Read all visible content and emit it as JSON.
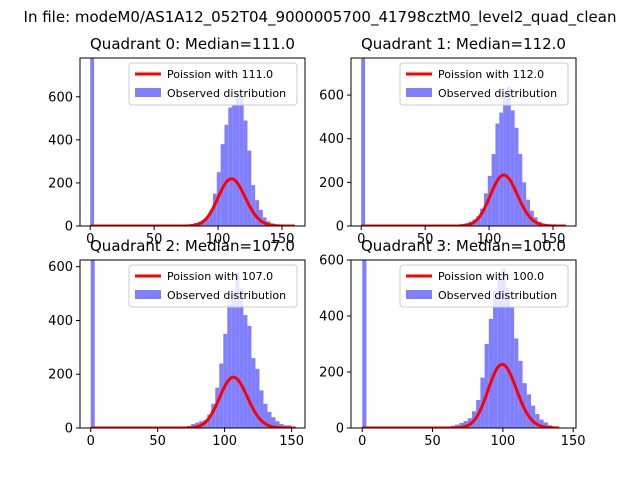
{
  "suptitle": "In file: modeM0/AS1A12_052T04_9000005700_41798cztM0_level2_quad_clean",
  "colors": {
    "hist": "#8080ff",
    "fit": "#ff0000",
    "axis": "#000000"
  },
  "chart_data": [
    {
      "type": "bar",
      "title": "Quadrant 0: Median=111.0",
      "xlim": [
        -8,
        168
      ],
      "ylim": [
        0,
        780
      ],
      "xticks": [
        0,
        50,
        100,
        150
      ],
      "yticks": [
        0,
        200,
        400,
        600
      ],
      "legend": {
        "placement": "top-right",
        "entries": [
          "Poission with 111.0",
          "Observed distribution"
        ]
      },
      "series": [
        {
          "name": "Observed distribution",
          "kind": "histogram",
          "bins": [
            {
              "x0": 0,
              "x1": 3,
              "y": 780
            },
            {
              "x0": 3,
              "x1": 66,
              "y": 0
            },
            {
              "x0": 66,
              "x1": 69,
              "y": 2
            },
            {
              "x0": 69,
              "x1": 72,
              "y": 3
            },
            {
              "x0": 72,
              "x1": 75,
              "y": 5
            },
            {
              "x0": 75,
              "x1": 78,
              "y": 7
            },
            {
              "x0": 78,
              "x1": 81,
              "y": 10
            },
            {
              "x0": 81,
              "x1": 84,
              "y": 14
            },
            {
              "x0": 84,
              "x1": 87,
              "y": 20
            },
            {
              "x0": 87,
              "x1": 90,
              "y": 28
            },
            {
              "x0": 90,
              "x1": 93,
              "y": 40
            },
            {
              "x0": 93,
              "x1": 96,
              "y": 70
            },
            {
              "x0": 96,
              "x1": 99,
              "y": 150
            },
            {
              "x0": 99,
              "x1": 102,
              "y": 250
            },
            {
              "x0": 102,
              "x1": 105,
              "y": 380
            },
            {
              "x0": 105,
              "x1": 108,
              "y": 470
            },
            {
              "x0": 108,
              "x1": 111,
              "y": 550
            },
            {
              "x0": 111,
              "x1": 114,
              "y": 560
            },
            {
              "x0": 114,
              "x1": 117,
              "y": 620
            },
            {
              "x0": 117,
              "x1": 120,
              "y": 600
            },
            {
              "x0": 120,
              "x1": 123,
              "y": 490
            },
            {
              "x0": 123,
              "x1": 126,
              "y": 350
            },
            {
              "x0": 126,
              "x1": 129,
              "y": 190
            },
            {
              "x0": 129,
              "x1": 132,
              "y": 120
            },
            {
              "x0": 132,
              "x1": 135,
              "y": 75
            },
            {
              "x0": 135,
              "x1": 138,
              "y": 40
            },
            {
              "x0": 138,
              "x1": 141,
              "y": 22
            },
            {
              "x0": 141,
              "x1": 144,
              "y": 12
            },
            {
              "x0": 144,
              "x1": 147,
              "y": 7
            },
            {
              "x0": 147,
              "x1": 150,
              "y": 4
            },
            {
              "x0": 150,
              "x1": 160,
              "y": 2
            }
          ]
        },
        {
          "name": "Poission with 111.0",
          "kind": "poisson",
          "lambda": 111.0,
          "scale": 5800,
          "x_range": [
            0,
            160
          ]
        }
      ]
    },
    {
      "type": "bar",
      "title": "Quadrant 1: Median=112.0",
      "xlim": [
        -8,
        168
      ],
      "ylim": [
        0,
        770
      ],
      "xticks": [
        0,
        50,
        100,
        150
      ],
      "yticks": [
        0,
        200,
        400,
        600
      ],
      "legend": {
        "placement": "top-right",
        "entries": [
          "Poission with 112.0",
          "Observed distribution"
        ]
      },
      "series": [
        {
          "name": "Observed distribution",
          "kind": "histogram",
          "bins": [
            {
              "x0": 0,
              "x1": 3,
              "y": 770
            },
            {
              "x0": 3,
              "x1": 72,
              "y": 0
            },
            {
              "x0": 72,
              "x1": 75,
              "y": 4
            },
            {
              "x0": 75,
              "x1": 78,
              "y": 6
            },
            {
              "x0": 78,
              "x1": 81,
              "y": 9
            },
            {
              "x0": 81,
              "x1": 84,
              "y": 13
            },
            {
              "x0": 84,
              "x1": 87,
              "y": 20
            },
            {
              "x0": 87,
              "x1": 90,
              "y": 30
            },
            {
              "x0": 90,
              "x1": 93,
              "y": 45
            },
            {
              "x0": 93,
              "x1": 96,
              "y": 80
            },
            {
              "x0": 96,
              "x1": 99,
              "y": 150
            },
            {
              "x0": 99,
              "x1": 102,
              "y": 230
            },
            {
              "x0": 102,
              "x1": 105,
              "y": 330
            },
            {
              "x0": 105,
              "x1": 108,
              "y": 470
            },
            {
              "x0": 108,
              "x1": 111,
              "y": 520
            },
            {
              "x0": 111,
              "x1": 114,
              "y": 610
            },
            {
              "x0": 114,
              "x1": 117,
              "y": 640
            },
            {
              "x0": 117,
              "x1": 120,
              "y": 530
            },
            {
              "x0": 120,
              "x1": 123,
              "y": 450
            },
            {
              "x0": 123,
              "x1": 126,
              "y": 330
            },
            {
              "x0": 126,
              "x1": 129,
              "y": 200
            },
            {
              "x0": 129,
              "x1": 132,
              "y": 120
            },
            {
              "x0": 132,
              "x1": 135,
              "y": 70
            },
            {
              "x0": 135,
              "x1": 138,
              "y": 40
            },
            {
              "x0": 138,
              "x1": 141,
              "y": 20
            },
            {
              "x0": 141,
              "x1": 144,
              "y": 10
            },
            {
              "x0": 144,
              "x1": 150,
              "y": 5
            },
            {
              "x0": 150,
              "x1": 160,
              "y": 2
            }
          ]
        },
        {
          "name": "Poission with 112.0",
          "kind": "poisson",
          "lambda": 112.0,
          "scale": 6200,
          "x_range": [
            0,
            160
          ]
        }
      ]
    },
    {
      "type": "bar",
      "title": "Quadrant 2: Median=107.0",
      "xlim": [
        -8,
        160
      ],
      "ylim": [
        0,
        625
      ],
      "xticks": [
        0,
        50,
        100,
        150
      ],
      "yticks": [
        0,
        200,
        400,
        600
      ],
      "legend": {
        "placement": "top-right",
        "entries": [
          "Poission with 107.0",
          "Observed distribution"
        ]
      },
      "series": [
        {
          "name": "Observed distribution",
          "kind": "histogram",
          "bins": [
            {
              "x0": 0,
              "x1": 3,
              "y": 625
            },
            {
              "x0": 3,
              "x1": 66,
              "y": 0
            },
            {
              "x0": 66,
              "x1": 69,
              "y": 3
            },
            {
              "x0": 69,
              "x1": 72,
              "y": 5
            },
            {
              "x0": 72,
              "x1": 75,
              "y": 8
            },
            {
              "x0": 75,
              "x1": 78,
              "y": 15
            },
            {
              "x0": 78,
              "x1": 81,
              "y": 20
            },
            {
              "x0": 81,
              "x1": 84,
              "y": 25
            },
            {
              "x0": 84,
              "x1": 87,
              "y": 30
            },
            {
              "x0": 87,
              "x1": 90,
              "y": 50
            },
            {
              "x0": 90,
              "x1": 93,
              "y": 90
            },
            {
              "x0": 93,
              "x1": 96,
              "y": 150
            },
            {
              "x0": 96,
              "x1": 99,
              "y": 240
            },
            {
              "x0": 99,
              "x1": 102,
              "y": 350
            },
            {
              "x0": 102,
              "x1": 105,
              "y": 460
            },
            {
              "x0": 105,
              "x1": 108,
              "y": 510
            },
            {
              "x0": 108,
              "x1": 111,
              "y": 580
            },
            {
              "x0": 111,
              "x1": 114,
              "y": 520
            },
            {
              "x0": 114,
              "x1": 117,
              "y": 420
            },
            {
              "x0": 117,
              "x1": 120,
              "y": 380
            },
            {
              "x0": 120,
              "x1": 123,
              "y": 260
            },
            {
              "x0": 123,
              "x1": 126,
              "y": 220
            },
            {
              "x0": 126,
              "x1": 129,
              "y": 140
            },
            {
              "x0": 129,
              "x1": 132,
              "y": 90
            },
            {
              "x0": 132,
              "x1": 135,
              "y": 60
            },
            {
              "x0": 135,
              "x1": 138,
              "y": 40
            },
            {
              "x0": 138,
              "x1": 141,
              "y": 25
            },
            {
              "x0": 141,
              "x1": 144,
              "y": 15
            },
            {
              "x0": 144,
              "x1": 150,
              "y": 10
            },
            {
              "x0": 150,
              "x1": 153,
              "y": 5
            }
          ]
        },
        {
          "name": "Poission with 107.0",
          "kind": "poisson",
          "lambda": 107.0,
          "scale": 4900,
          "x_range": [
            0,
            153
          ]
        }
      ]
    },
    {
      "type": "bar",
      "title": "Quadrant 3: Median=100.0",
      "xlim": [
        -8,
        152
      ],
      "ylim": [
        0,
        600
      ],
      "xticks": [
        0,
        50,
        100,
        150
      ],
      "yticks": [
        0,
        200,
        400,
        600
      ],
      "legend": {
        "placement": "top-right",
        "entries": [
          "Poission with 100.0",
          "Observed distribution"
        ]
      },
      "series": [
        {
          "name": "Observed distribution",
          "kind": "histogram",
          "bins": [
            {
              "x0": 0,
              "x1": 3,
              "y": 600
            },
            {
              "x0": 3,
              "x1": 57,
              "y": 0
            },
            {
              "x0": 57,
              "x1": 60,
              "y": 3
            },
            {
              "x0": 60,
              "x1": 63,
              "y": 5
            },
            {
              "x0": 63,
              "x1": 66,
              "y": 8
            },
            {
              "x0": 66,
              "x1": 69,
              "y": 12
            },
            {
              "x0": 69,
              "x1": 72,
              "y": 18
            },
            {
              "x0": 72,
              "x1": 75,
              "y": 25
            },
            {
              "x0": 75,
              "x1": 78,
              "y": 35
            },
            {
              "x0": 78,
              "x1": 81,
              "y": 60
            },
            {
              "x0": 81,
              "x1": 84,
              "y": 100
            },
            {
              "x0": 84,
              "x1": 87,
              "y": 180
            },
            {
              "x0": 87,
              "x1": 90,
              "y": 300
            },
            {
              "x0": 90,
              "x1": 93,
              "y": 390
            },
            {
              "x0": 93,
              "x1": 96,
              "y": 490
            },
            {
              "x0": 96,
              "x1": 99,
              "y": 540
            },
            {
              "x0": 99,
              "x1": 102,
              "y": 570
            },
            {
              "x0": 102,
              "x1": 105,
              "y": 500
            },
            {
              "x0": 105,
              "x1": 108,
              "y": 430
            },
            {
              "x0": 108,
              "x1": 111,
              "y": 320
            },
            {
              "x0": 111,
              "x1": 114,
              "y": 240
            },
            {
              "x0": 114,
              "x1": 117,
              "y": 160
            },
            {
              "x0": 117,
              "x1": 120,
              "y": 120
            },
            {
              "x0": 120,
              "x1": 123,
              "y": 80
            },
            {
              "x0": 123,
              "x1": 126,
              "y": 50
            },
            {
              "x0": 126,
              "x1": 129,
              "y": 30
            },
            {
              "x0": 129,
              "x1": 132,
              "y": 20
            },
            {
              "x0": 132,
              "x1": 135,
              "y": 10
            },
            {
              "x0": 135,
              "x1": 140,
              "y": 5
            }
          ]
        },
        {
          "name": "Poission with 100.0",
          "kind": "poisson",
          "lambda": 100.0,
          "scale": 5700,
          "x_range": [
            0,
            140
          ]
        }
      ]
    }
  ]
}
